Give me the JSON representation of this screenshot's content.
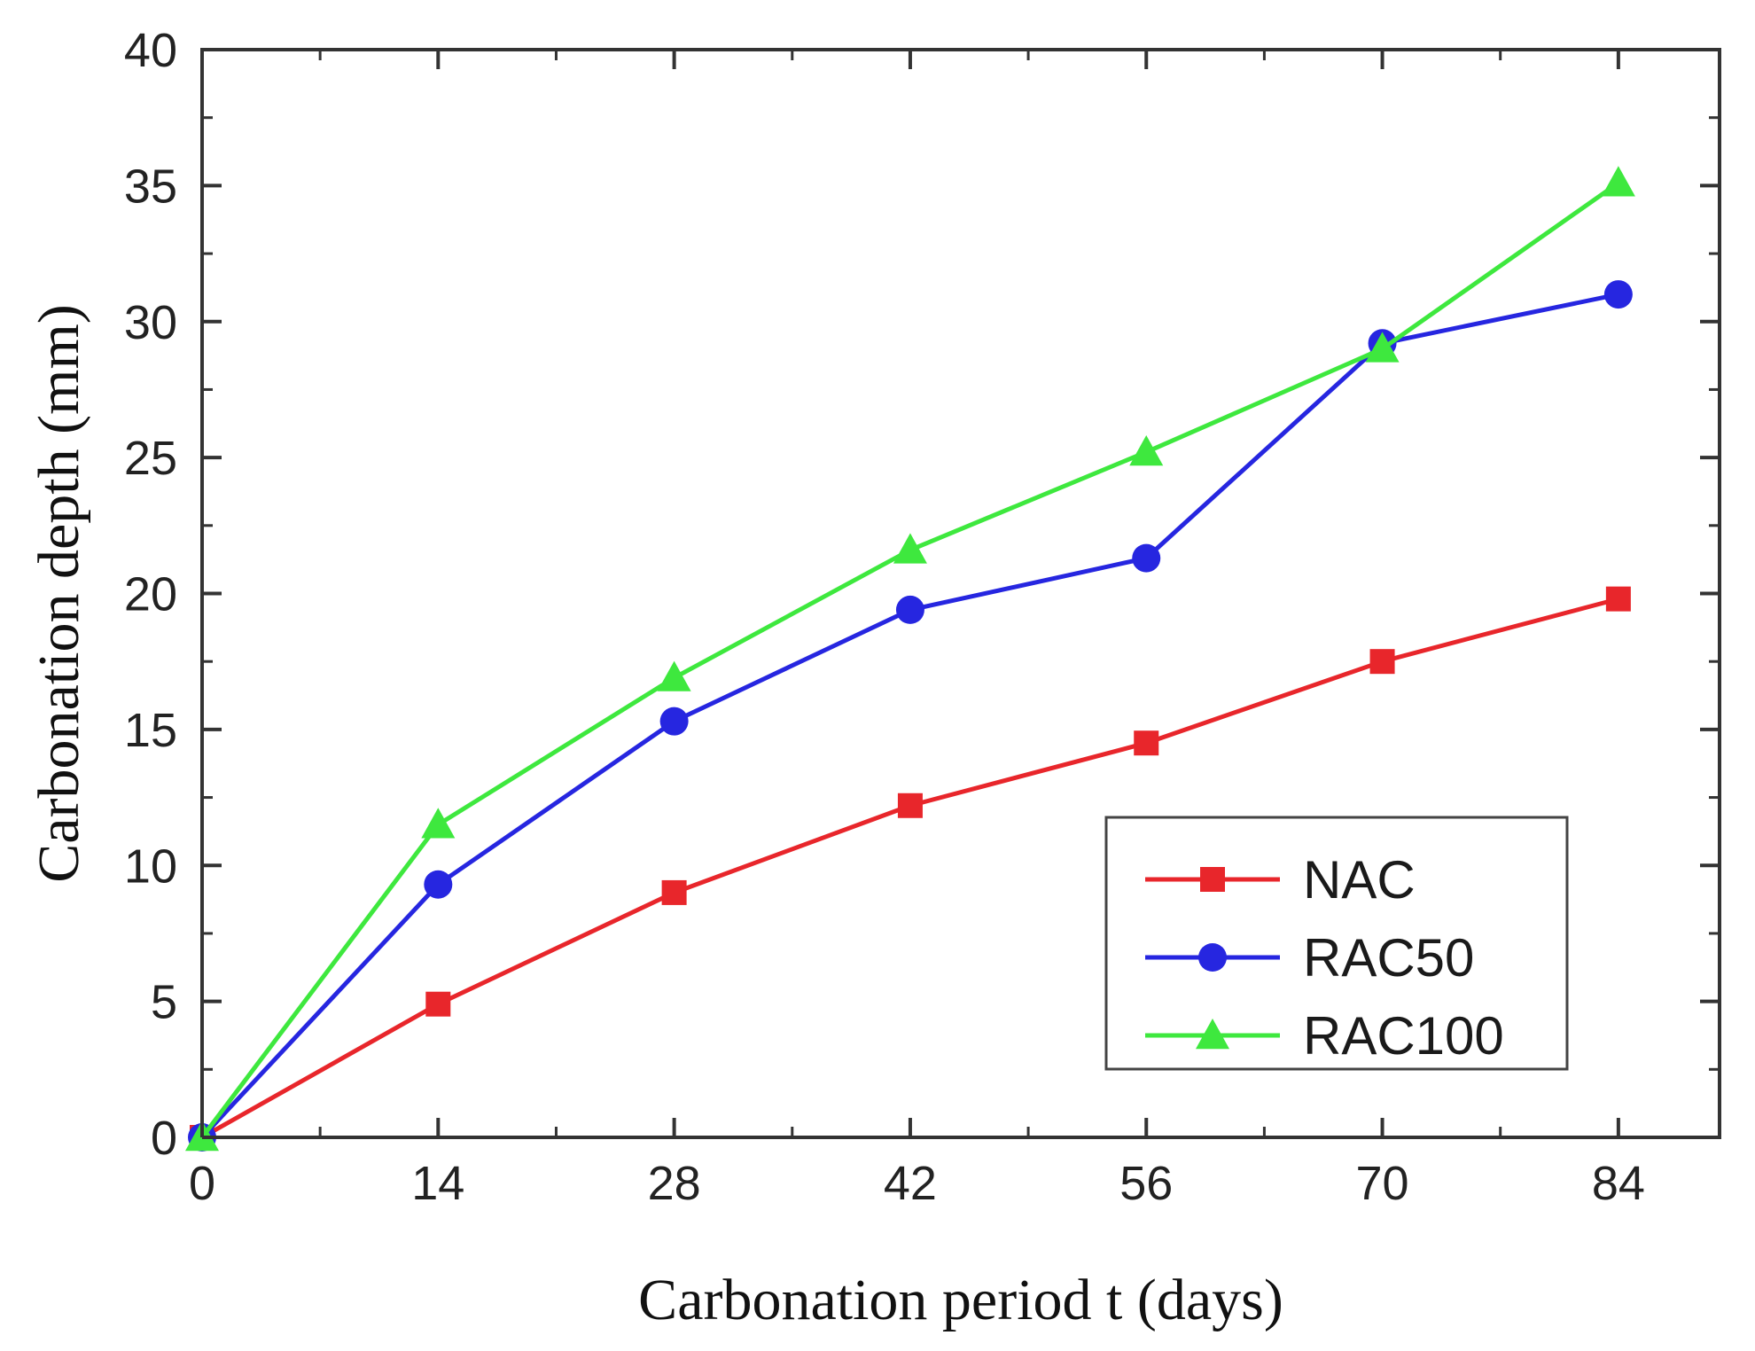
{
  "chart_data": {
    "type": "line",
    "title": "",
    "xlabel": "Carbonation period t (days)",
    "ylabel": "Carbonation depth (mm)",
    "xlim": [
      0,
      90
    ],
    "ylim": [
      0,
      40
    ],
    "x": [
      0,
      14,
      28,
      42,
      56,
      70,
      84
    ],
    "xticks": [
      0,
      14,
      28,
      42,
      56,
      70,
      84
    ],
    "yticks": [
      0,
      5,
      10,
      15,
      20,
      25,
      30,
      35,
      40
    ],
    "grid": false,
    "legend_position": "bottom-right",
    "series": [
      {
        "name": "NAC",
        "color": "#e8262b",
        "marker": "square",
        "values": [
          0,
          4.9,
          9.0,
          12.2,
          14.5,
          17.5,
          19.8
        ]
      },
      {
        "name": "RAC50",
        "color": "#2626e0",
        "marker": "circle",
        "values": [
          0,
          9.3,
          15.3,
          19.4,
          21.3,
          29.2,
          31.0
        ]
      },
      {
        "name": "RAC100",
        "color": "#3ee83e",
        "marker": "triangle",
        "values": [
          0,
          11.5,
          16.9,
          21.6,
          25.2,
          29.0,
          35.1
        ]
      }
    ]
  }
}
